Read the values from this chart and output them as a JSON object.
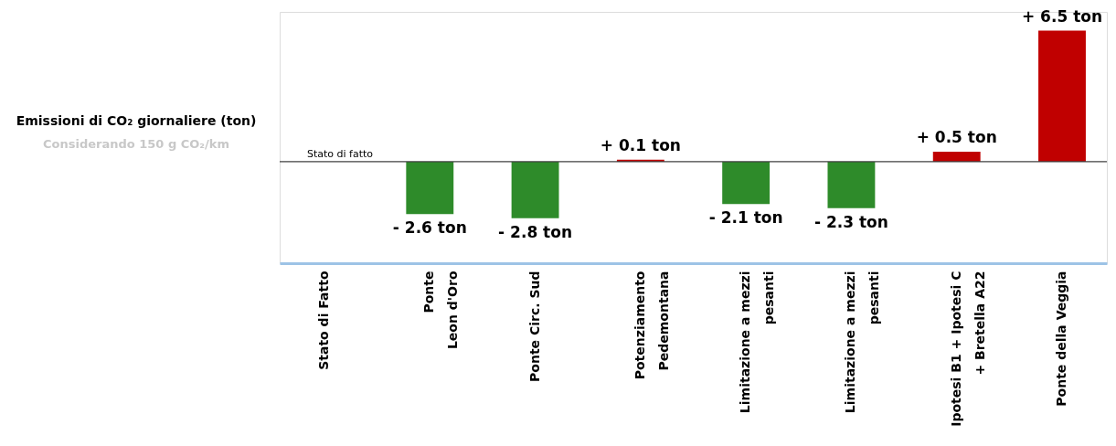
{
  "chart_data": {
    "type": "bar",
    "categories": [
      "Stato di Fatto",
      "Ponte\nLeon d'Oro",
      "Ponte Circ. Sud",
      "Potenziamento\nPedemontana",
      "Limitazione a mezzi\npesanti",
      "Limitazione a mezzi\npesanti",
      "Ipotesi B1 + Ipotesi C\n+ Bretella A22",
      "Ponte della Veggia"
    ],
    "values": [
      0,
      -2.6,
      -2.8,
      0.1,
      -2.1,
      -2.3,
      0.5,
      6.5
    ],
    "colors": [
      "#2e8b2a",
      "#2e8b2a",
      "#2e8b2a",
      "#c00000",
      "#2e8b2a",
      "#2e8b2a",
      "#c00000",
      "#c00000"
    ],
    "value_labels": [
      null,
      "- 2.6 ton",
      "- 2.8 ton",
      "+ 0.1 ton",
      "- 2.1 ton",
      "- 2.3 ton",
      "+ 0.5 ton",
      "+ 6.5 ton"
    ],
    "ref_lines": [
      {
        "axis": "y",
        "value": 0,
        "label": "Stato di fatto",
        "color": "#404040"
      }
    ],
    "annotations": [
      "Emissioni di CO₂ giornaliere (ton)",
      "Considerando 150 g CO₂/km"
    ],
    "grid": false
  }
}
